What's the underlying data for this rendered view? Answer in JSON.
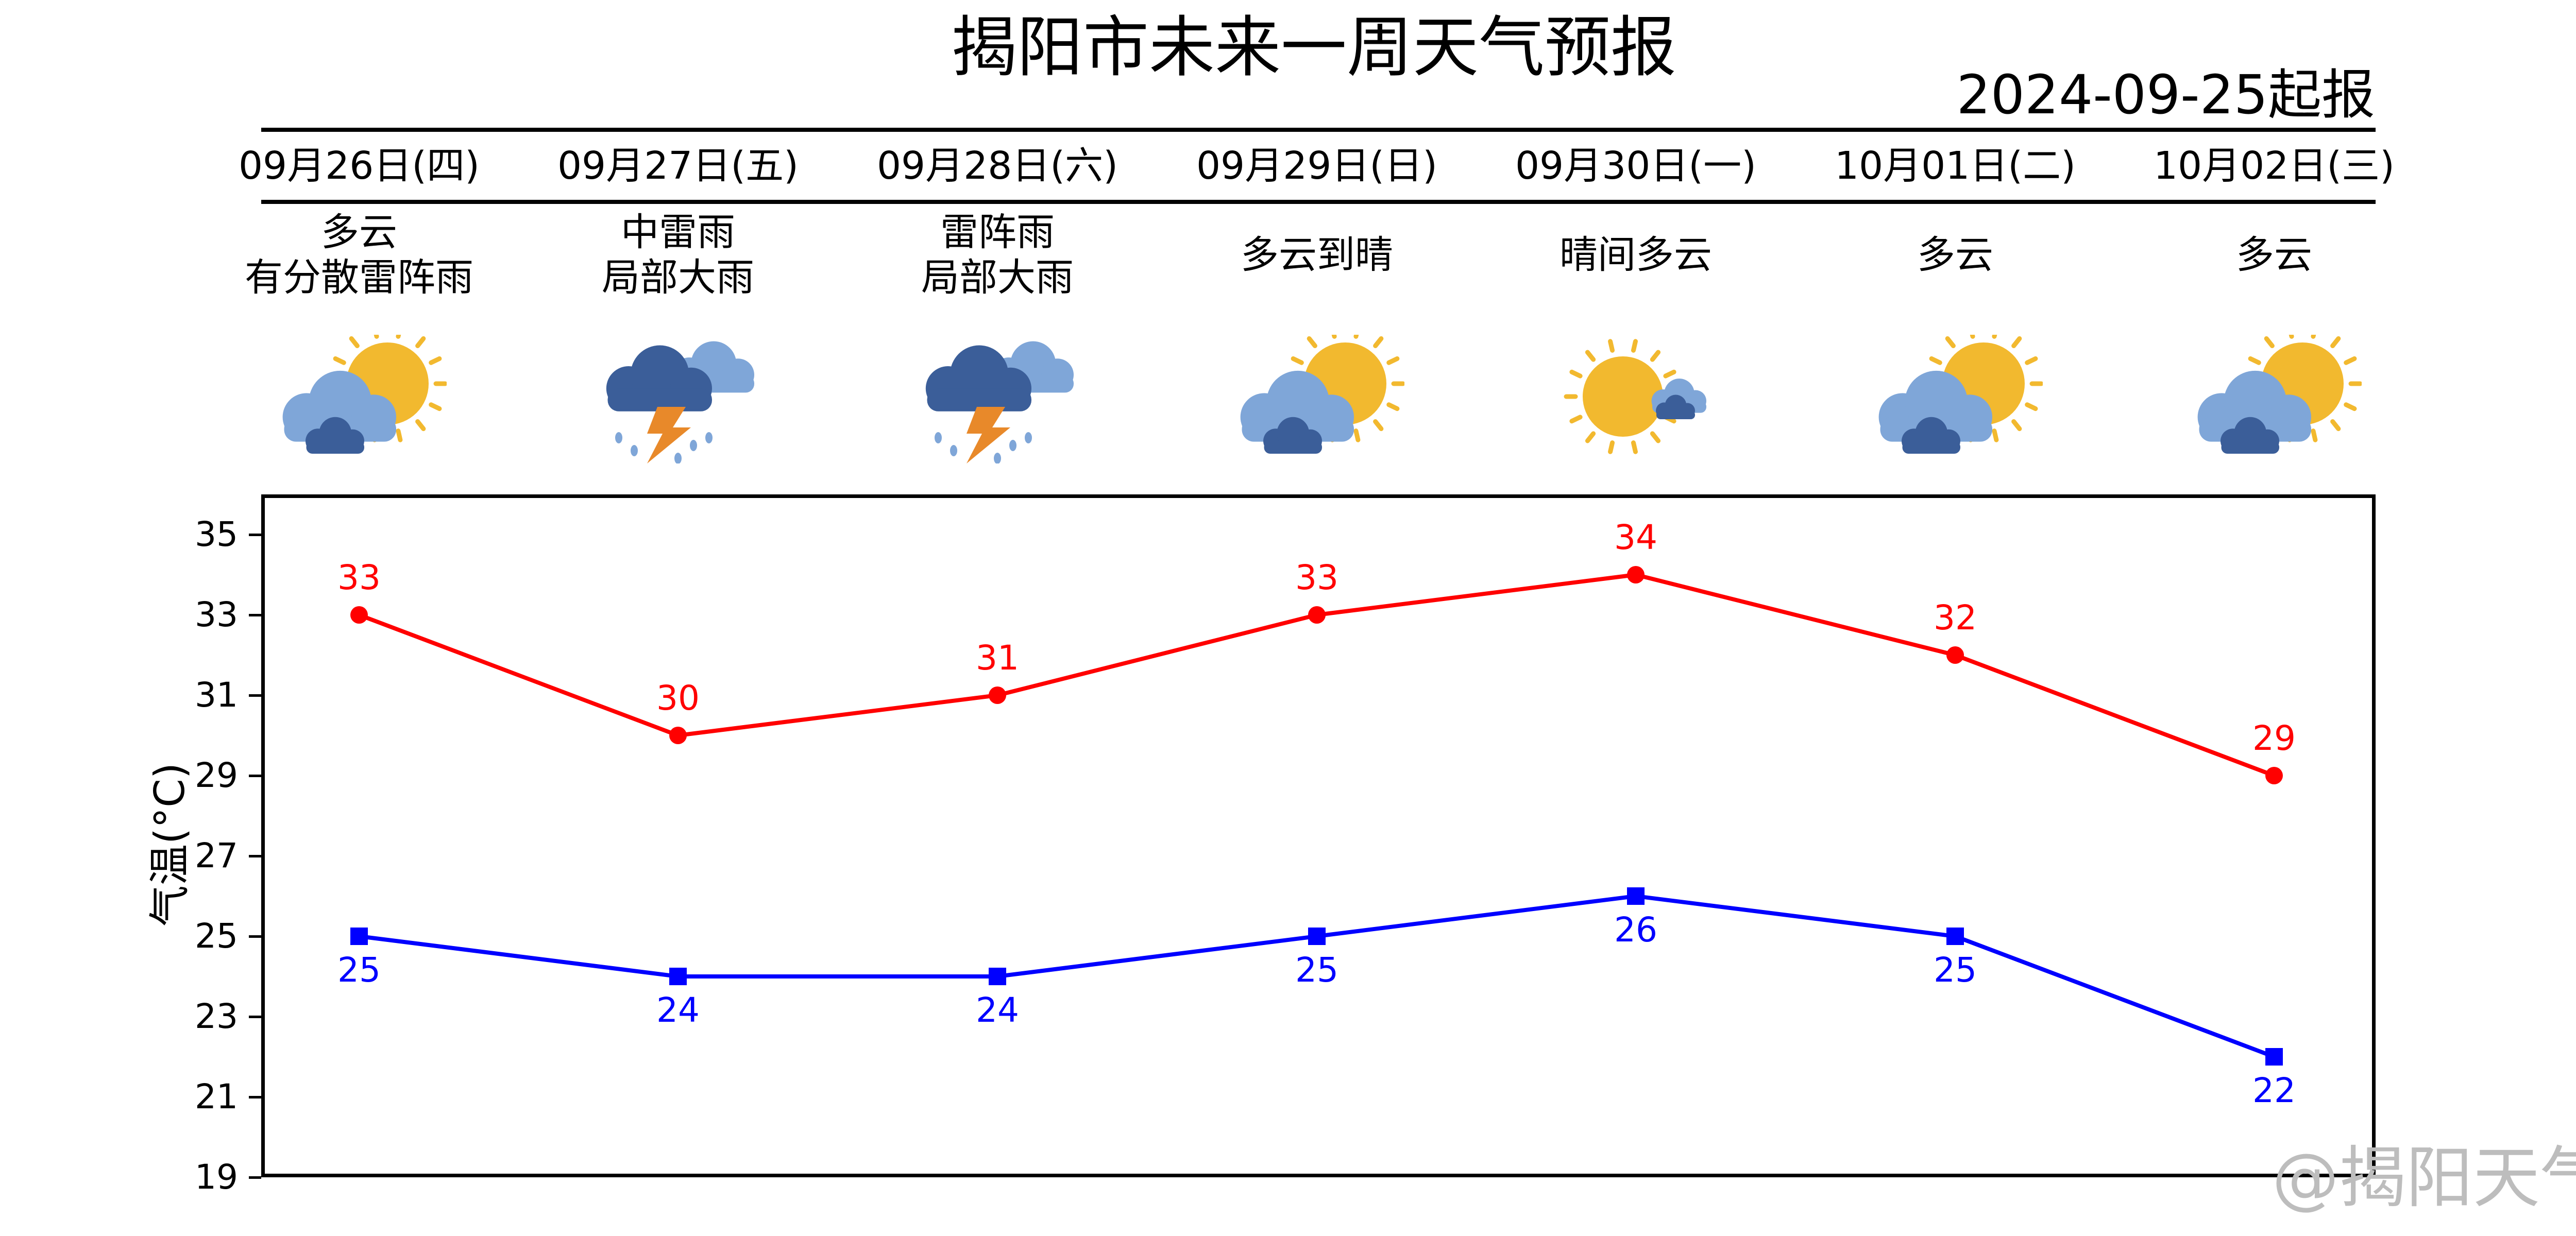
{
  "title": "揭阳市未来一周天气预报",
  "issued": "2024-09-25起报",
  "days": [
    {
      "date": "09月26日(四)",
      "weather": "多云\n有分散雷阵雨",
      "icon": "partly-cloudy-sun-icon"
    },
    {
      "date": "09月27日(五)",
      "weather": "中雷雨\n局部大雨",
      "icon": "thunderstorm-icon"
    },
    {
      "date": "09月28日(六)",
      "weather": "雷阵雨\n局部大雨",
      "icon": "thunderstorm-icon"
    },
    {
      "date": "09月29日(日)",
      "weather": "多云到晴",
      "icon": "partly-cloudy-sun-icon"
    },
    {
      "date": "09月30日(一)",
      "weather": "晴间多云",
      "icon": "sun-behind-small-cloud-icon"
    },
    {
      "date": "10月01日(二)",
      "weather": "多云",
      "icon": "partly-cloudy-sun-icon"
    },
    {
      "date": "10月02日(三)",
      "weather": "多云",
      "icon": "partly-cloudy-sun-icon"
    }
  ],
  "watermark": "@揭阳天气",
  "colors": {
    "high": "#ff0000",
    "low": "#0000ff",
    "sun": "#f2b92f",
    "cloud_light": "#7fa6d8",
    "cloud_dark": "#3b5e99",
    "bolt": "#e8892a"
  },
  "chart_data": {
    "type": "line",
    "categories": [
      "09月26日(四)",
      "09月27日(五)",
      "09月28日(六)",
      "09月29日(日)",
      "09月30日(一)",
      "10月01日(二)",
      "10月02日(三)"
    ],
    "series": [
      {
        "values": [
          33,
          30,
          31,
          33,
          34,
          32,
          29
        ],
        "color": "#ff0000",
        "marker": "circle"
      },
      {
        "values": [
          25,
          24,
          24,
          25,
          26,
          25,
          22
        ],
        "color": "#0000ff",
        "marker": "square"
      }
    ],
    "ylabel": "气温(°C)",
    "ylim": [
      19,
      36
    ],
    "yticks": [
      19,
      21,
      23,
      25,
      27,
      29,
      31,
      33,
      35
    ],
    "grid": false
  }
}
